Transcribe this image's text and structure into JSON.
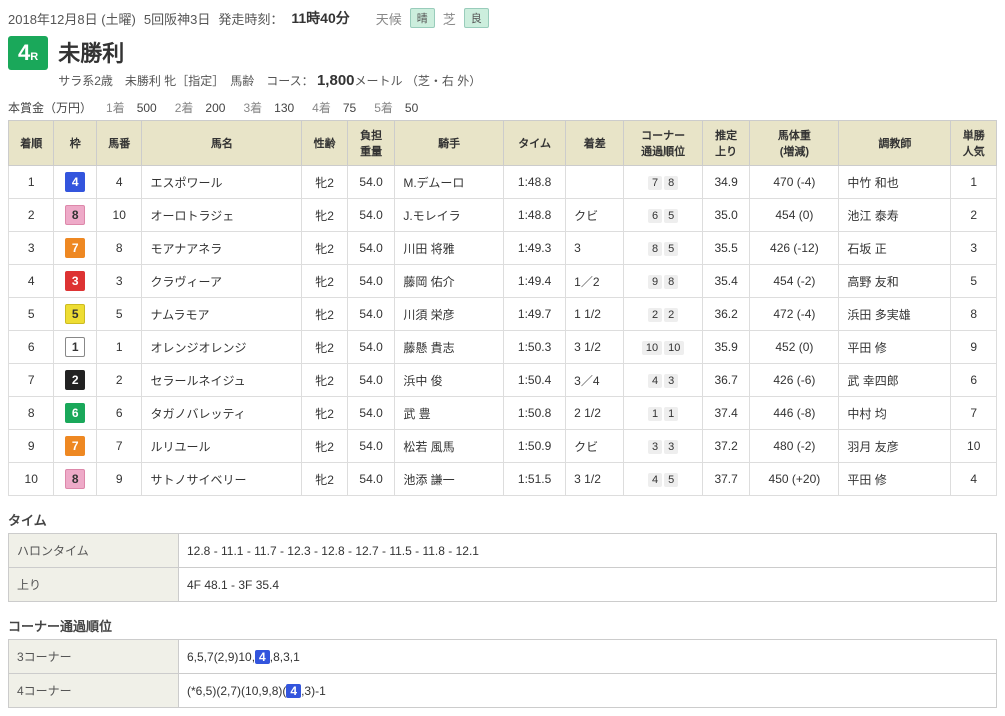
{
  "wakuColors": {
    "1": {
      "bg": "#ffffff",
      "fg": "#333333",
      "border": "#888"
    },
    "2": {
      "bg": "#222222",
      "fg": "#ffffff",
      "border": "#222"
    },
    "3": {
      "bg": "#dd3333",
      "fg": "#ffffff",
      "border": "#dd3333"
    },
    "4": {
      "bg": "#3355dd",
      "fg": "#ffffff",
      "border": "#3355dd"
    },
    "5": {
      "bg": "#eedd33",
      "fg": "#333333",
      "border": "#ccbb22"
    },
    "6": {
      "bg": "#1aa85a",
      "fg": "#ffffff",
      "border": "#1aa85a"
    },
    "7": {
      "bg": "#ee8822",
      "fg": "#ffffff",
      "border": "#ee8822"
    },
    "8": {
      "bg": "#eeaac8",
      "fg": "#333333",
      "border": "#dd88aa"
    }
  },
  "header": {
    "date": "2018年12月8日 (土曜)",
    "meeting": "5回阪神3日",
    "postLabel": "発走時刻：",
    "postTime": "11時40分",
    "weatherLabel": "天候",
    "weatherVal": "晴",
    "turfLabel": "芝",
    "turfVal": "良"
  },
  "race": {
    "numText": "4",
    "numSuffix": "R",
    "title": "未勝利",
    "sub1": "サラ系2歳　未勝利 牝［指定］　馬齢　コース：",
    "dist": "1,800",
    "distUnit": "メートル",
    "course": "（芝・右 外）"
  },
  "prize": {
    "label": "本賞金（万円）",
    "items": [
      {
        "rank": "1着",
        "val": "500"
      },
      {
        "rank": "2着",
        "val": "200"
      },
      {
        "rank": "3着",
        "val": "130"
      },
      {
        "rank": "4着",
        "val": "75"
      },
      {
        "rank": "5着",
        "val": "50"
      }
    ]
  },
  "columns": [
    "着順",
    "枠",
    "馬番",
    "馬名",
    "性齢",
    "負担\n重量",
    "騎手",
    "タイム",
    "着差",
    "コーナー\n通過順位",
    "推定\n上り",
    "馬体重\n(増減)",
    "調教師",
    "単勝\n人気"
  ],
  "rows": [
    {
      "fin": "1",
      "waku": "4",
      "num": "4",
      "name": "エスポワール",
      "sa": "牝2",
      "wt": "54.0",
      "jockey": "M.デムーロ",
      "time": "1:48.8",
      "margin": "",
      "corner": [
        "7",
        "8"
      ],
      "agari": "34.9",
      "bw": "470 (-4)",
      "trainer": "中竹 和也",
      "pop": "1"
    },
    {
      "fin": "2",
      "waku": "8",
      "num": "10",
      "name": "オーロトラジェ",
      "sa": "牝2",
      "wt": "54.0",
      "jockey": "J.モレイラ",
      "time": "1:48.8",
      "margin": "クビ",
      "corner": [
        "6",
        "5"
      ],
      "agari": "35.0",
      "bw": "454 (0)",
      "trainer": "池江 泰寿",
      "pop": "2"
    },
    {
      "fin": "3",
      "waku": "7",
      "num": "8",
      "name": "モアナアネラ",
      "sa": "牝2",
      "wt": "54.0",
      "jockey": "川田 将雅",
      "time": "1:49.3",
      "margin": "3",
      "corner": [
        "8",
        "5"
      ],
      "agari": "35.5",
      "bw": "426 (-12)",
      "trainer": "石坂 正",
      "pop": "3"
    },
    {
      "fin": "4",
      "waku": "3",
      "num": "3",
      "name": "クラヴィーア",
      "sa": "牝2",
      "wt": "54.0",
      "jockey": "藤岡 佑介",
      "time": "1:49.4",
      "margin": "1／2",
      "corner": [
        "9",
        "8"
      ],
      "agari": "35.4",
      "bw": "454 (-2)",
      "trainer": "高野 友和",
      "pop": "5"
    },
    {
      "fin": "5",
      "waku": "5",
      "num": "5",
      "name": "ナムラモア",
      "sa": "牝2",
      "wt": "54.0",
      "jockey": "川須 栄彦",
      "time": "1:49.7",
      "margin": "1 1/2",
      "corner": [
        "2",
        "2"
      ],
      "agari": "36.2",
      "bw": "472 (-4)",
      "trainer": "浜田 多実雄",
      "pop": "8"
    },
    {
      "fin": "6",
      "waku": "1",
      "num": "1",
      "name": "オレンジオレンジ",
      "sa": "牝2",
      "wt": "54.0",
      "jockey": "藤懸 貴志",
      "time": "1:50.3",
      "margin": "3 1/2",
      "corner": [
        "10",
        "10"
      ],
      "agari": "35.9",
      "bw": "452 (0)",
      "trainer": "平田 修",
      "pop": "9"
    },
    {
      "fin": "7",
      "waku": "2",
      "num": "2",
      "name": "セラールネイジュ",
      "sa": "牝2",
      "wt": "54.0",
      "jockey": "浜中 俊",
      "time": "1:50.4",
      "margin": "3／4",
      "corner": [
        "4",
        "3"
      ],
      "agari": "36.7",
      "bw": "426 (-6)",
      "trainer": "武 幸四郎",
      "pop": "6"
    },
    {
      "fin": "8",
      "waku": "6",
      "num": "6",
      "name": "タガノバレッティ",
      "sa": "牝2",
      "wt": "54.0",
      "jockey": "武 豊",
      "time": "1:50.8",
      "margin": "2 1/2",
      "corner": [
        "1",
        "1"
      ],
      "agari": "37.4",
      "bw": "446 (-8)",
      "trainer": "中村 均",
      "pop": "7"
    },
    {
      "fin": "9",
      "waku": "7",
      "num": "7",
      "name": "ルリユール",
      "sa": "牝2",
      "wt": "54.0",
      "jockey": "松若 風馬",
      "time": "1:50.9",
      "margin": "クビ",
      "corner": [
        "3",
        "3"
      ],
      "agari": "37.2",
      "bw": "480 (-2)",
      "trainer": "羽月 友彦",
      "pop": "10"
    },
    {
      "fin": "10",
      "waku": "8",
      "num": "9",
      "name": "サトノサイベリー",
      "sa": "牝2",
      "wt": "54.0",
      "jockey": "池添 謙一",
      "time": "1:51.5",
      "margin": "3 1/2",
      "corner": [
        "4",
        "5"
      ],
      "agari": "37.7",
      "bw": "450 (+20)",
      "trainer": "平田 修",
      "pop": "4"
    }
  ],
  "timeSection": {
    "title": "タイム",
    "rows": [
      {
        "label": "ハロンタイム",
        "val": "12.8 - 11.1 - 11.7 - 12.3 - 12.8 - 12.7 - 11.5 - 11.8 - 12.1"
      },
      {
        "label": "上り",
        "val": "4F 48.1 - 3F 35.4"
      }
    ]
  },
  "cornerSection": {
    "title": "コーナー通過順位",
    "winner": "4",
    "rows": [
      {
        "label": "3コーナー",
        "pre": "6,5,7(2,9)10,",
        "post": ",8,3,1"
      },
      {
        "label": "4コーナー",
        "pre": "(*6,5)(2,7)(10,9,8)(",
        "post": ",3)-1"
      }
    ]
  }
}
